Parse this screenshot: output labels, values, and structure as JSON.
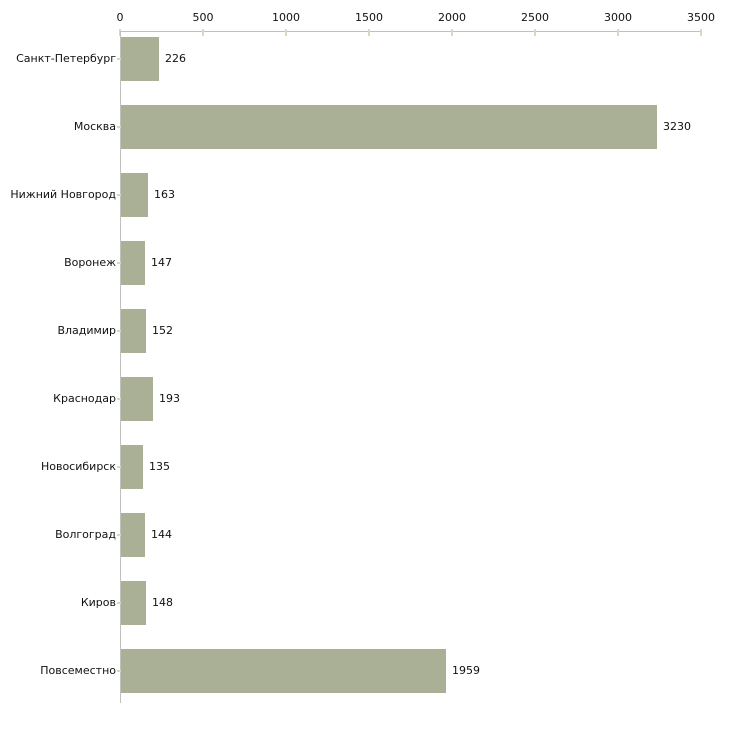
{
  "chart_data": {
    "type": "bar",
    "orientation": "horizontal",
    "title": "",
    "xlabel": "",
    "ylabel": "",
    "categories": [
      "Санкт-Петербург",
      "Москва",
      "Нижний Новгород",
      "Воронеж",
      "Владимир",
      "Краснодар",
      "Новосибирск",
      "Волгоград",
      "Киров",
      "Повсеместно"
    ],
    "values": [
      226,
      3230,
      163,
      147,
      152,
      193,
      135,
      144,
      148,
      1959
    ],
    "value_labels": [
      "226",
      "3230",
      "163",
      "147",
      "152",
      "193",
      "135",
      "144",
      "148",
      "1959"
    ],
    "x_axis": {
      "position": "top",
      "min": 0,
      "max": 3500,
      "ticks": [
        0,
        500,
        1000,
        1500,
        2000,
        2500,
        3000,
        3500
      ],
      "tick_labels": [
        "0",
        "500",
        "1000",
        "1500",
        "2000",
        "2500",
        "3000",
        "3500"
      ]
    },
    "grid": false,
    "legend": null,
    "colors": {
      "bar": "#a9b096",
      "axis_line": "#bfc1bd",
      "tick_mark": "#d6dabf",
      "text": "#111111",
      "background": "#ffffff"
    }
  }
}
